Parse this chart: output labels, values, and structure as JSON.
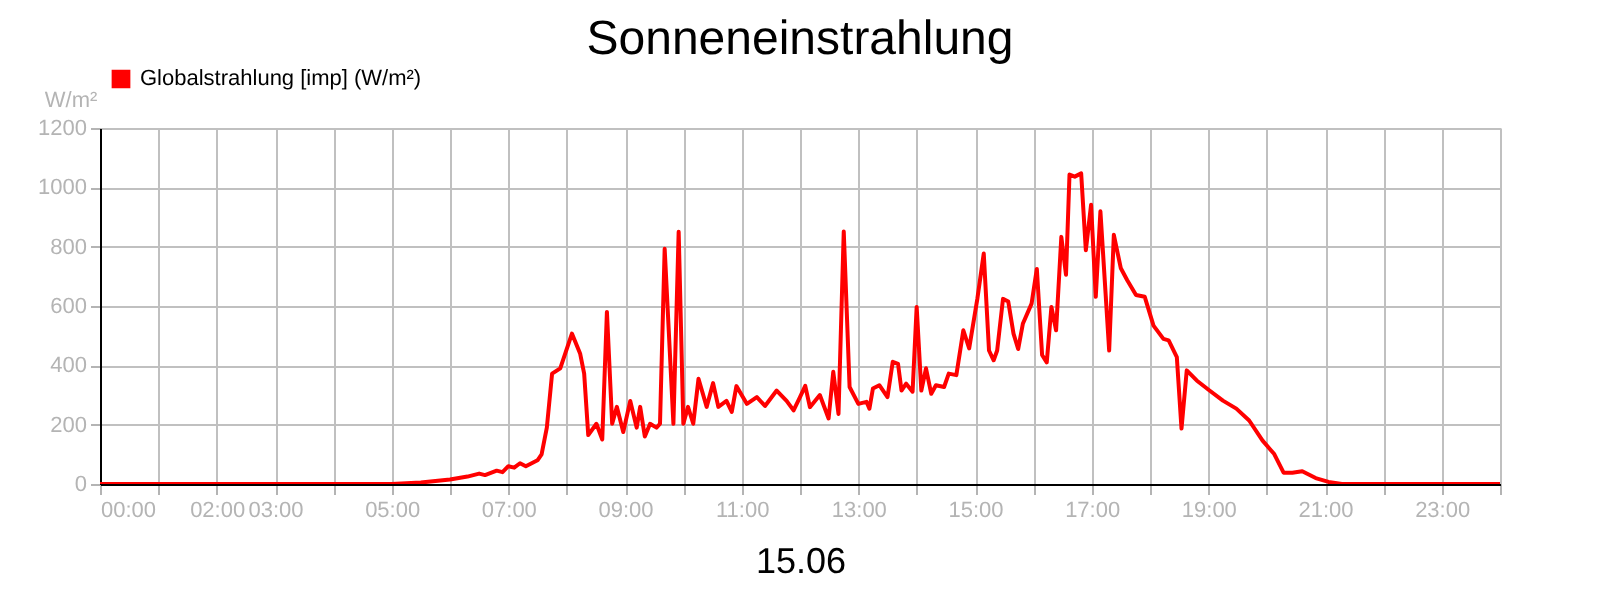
{
  "chart_data": {
    "type": "line",
    "title": "Sonneneinstrahlung",
    "xlabel": "15.06",
    "ylabel": "W/m²",
    "x": [
      0,
      5,
      5.5,
      6,
      6.3,
      6.5,
      6.6,
      6.8,
      6.9,
      7,
      7.1,
      7.2,
      7.3,
      7.5,
      7.57,
      7.66,
      7.75,
      7.89,
      8.09,
      8.23,
      8.3,
      8.37,
      8.51,
      8.61,
      8.69,
      8.78,
      8.86,
      8.97,
      9.09,
      9.2,
      9.26,
      9.34,
      9.43,
      9.54,
      9.6,
      9.68,
      9.83,
      9.92,
      10,
      10.08,
      10.17,
      10.26,
      10.4,
      10.51,
      10.6,
      10.74,
      10.83,
      10.91,
      11.09,
      11.26,
      11.4,
      11.6,
      11.77,
      11.89,
      12,
      12.09,
      12.17,
      12.34,
      12.49,
      12.57,
      12.66,
      12.75,
      12.85,
      13,
      13.14,
      13.19,
      13.25,
      13.36,
      13.5,
      13.59,
      13.68,
      13.74,
      13.82,
      13.93,
      14,
      14.08,
      14.16,
      14.25,
      14.33,
      14.47,
      14.55,
      14.68,
      14.8,
      14.9,
      15.04,
      15.15,
      15.24,
      15.32,
      15.38,
      15.48,
      15.57,
      15.66,
      15.74,
      15.82,
      15.97,
      16.06,
      16.15,
      16.23,
      16.31,
      16.39,
      16.48,
      16.56,
      16.62,
      16.71,
      16.82,
      16.9,
      16.99,
      17.07,
      17.15,
      17.3,
      17.38,
      17.5,
      17.61,
      17.76,
      17.91,
      18.06,
      18.23,
      18.32,
      18.46,
      18.54,
      18.63,
      18.8,
      19.02,
      19.25,
      19.48,
      19.7,
      19.93,
      20.13,
      20.29,
      20.44,
      20.61,
      20.84,
      21.06,
      21.29,
      24
    ],
    "series": [
      {
        "name": "Globalstrahlung [imp] (W/m²)",
        "color": "#ff0000",
        "values": [
          0,
          0,
          5,
          15,
          25,
          35,
          30,
          45,
          40,
          60,
          55,
          70,
          60,
          80,
          100,
          190,
          372,
          390,
          507,
          440,
          372,
          165,
          203,
          150,
          580,
          203,
          260,
          175,
          280,
          190,
          260,
          160,
          203,
          190,
          203,
          793,
          203,
          850,
          203,
          260,
          203,
          355,
          260,
          340,
          260,
          280,
          243,
          330,
          270,
          293,
          263,
          315,
          280,
          248,
          293,
          331,
          259,
          300,
          221,
          378,
          236,
          851,
          327,
          270,
          277,
          254,
          322,
          333,
          293,
          412,
          405,
          315,
          338,
          311,
          597,
          315,
          390,
          304,
          333,
          327,
          372,
          367,
          518,
          457,
          624,
          777,
          450,
          417,
          450,
          624,
          615,
          507,
          455,
          540,
          608,
          725,
          435,
          410,
          597,
          518,
          833,
          705,
          1043,
          1036,
          1047,
          788,
          941,
          631,
          919,
          450,
          840,
          727,
          687,
          637,
          631,
          534,
          489,
          484,
          428,
          187,
          383,
          349,
          315,
          281,
          254,
          214,
          146,
          101,
          38,
          38,
          43,
          20,
          7,
          0,
          0
        ]
      }
    ],
    "xlim": [
      0,
      24
    ],
    "xticks": [
      {
        "value": 0,
        "label": "00:00"
      },
      {
        "value": 1,
        "label": null
      },
      {
        "value": 2,
        "label": "02:00"
      },
      {
        "value": 3,
        "label": "03:00"
      },
      {
        "value": 4,
        "label": null
      },
      {
        "value": 5,
        "label": "05:00"
      },
      {
        "value": 6,
        "label": null
      },
      {
        "value": 7,
        "label": "07:00"
      },
      {
        "value": 8,
        "label": null
      },
      {
        "value": 9,
        "label": "09:00"
      },
      {
        "value": 10,
        "label": null
      },
      {
        "value": 11,
        "label": "11:00"
      },
      {
        "value": 12,
        "label": null
      },
      {
        "value": 13,
        "label": "13:00"
      },
      {
        "value": 14,
        "label": null
      },
      {
        "value": 15,
        "label": "15:00"
      },
      {
        "value": 16,
        "label": null
      },
      {
        "value": 17,
        "label": "17:00"
      },
      {
        "value": 18,
        "label": null
      },
      {
        "value": 19,
        "label": "19:00"
      },
      {
        "value": 20,
        "label": null
      },
      {
        "value": 21,
        "label": "21:00"
      },
      {
        "value": 22,
        "label": null
      },
      {
        "value": 23,
        "label": "23:00"
      },
      {
        "value": 24,
        "label": null
      }
    ],
    "ylim": [
      0,
      1200
    ],
    "yticks": [
      0,
      200,
      400,
      600,
      800,
      1000,
      1200
    ],
    "grid": true,
    "legend": "top left",
    "marker": "none",
    "line_style": "solid"
  }
}
